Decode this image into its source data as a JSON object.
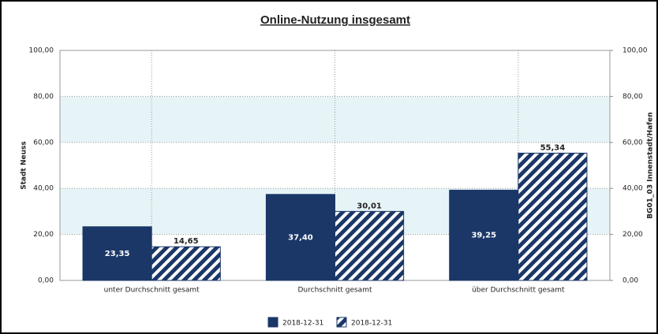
{
  "chart_data": {
    "type": "bar",
    "title": "Online-Nutzung insgesamt",
    "y_label": "Stadt Neuss",
    "y2_label": "BG01_03 Innenstadt/Hafen",
    "categories": [
      "unter Durchschnitt gesamt",
      "Durchschnitt gesamt",
      "über Durchschnitt gesamt"
    ],
    "series": [
      {
        "name": "2018-12-31",
        "color": "#1b3768",
        "values": [
          23.35,
          37.4,
          39.25
        ],
        "value_labels": [
          "23,35",
          "37,40",
          "39,25"
        ]
      },
      {
        "name": "2018-12-31",
        "color": "#1b3768",
        "pattern": "hatched",
        "axis": "y2",
        "values": [
          14.65,
          30.01,
          55.34
        ],
        "value_labels": [
          "14,65",
          "30,01",
          "55,34"
        ]
      }
    ],
    "ylim": [
      0,
      100
    ],
    "yticks": [
      {
        "value": 0,
        "label": "0,00"
      },
      {
        "value": 20,
        "label": "20,00"
      },
      {
        "value": 40,
        "label": "40,00"
      },
      {
        "value": 60,
        "label": "60,00"
      },
      {
        "value": 80,
        "label": "80,00"
      },
      {
        "value": 100,
        "label": "100,00"
      }
    ],
    "y2lim": [
      0,
      100
    ],
    "y2ticks": [
      {
        "value": 0,
        "label": "0,00"
      },
      {
        "value": 20,
        "label": "20,00"
      },
      {
        "value": 40,
        "label": "40,00"
      },
      {
        "value": 60,
        "label": "60,00"
      },
      {
        "value": 80,
        "label": "80,00"
      },
      {
        "value": 100,
        "label": "100,00"
      }
    ],
    "grid": true,
    "legend": "bottom"
  }
}
